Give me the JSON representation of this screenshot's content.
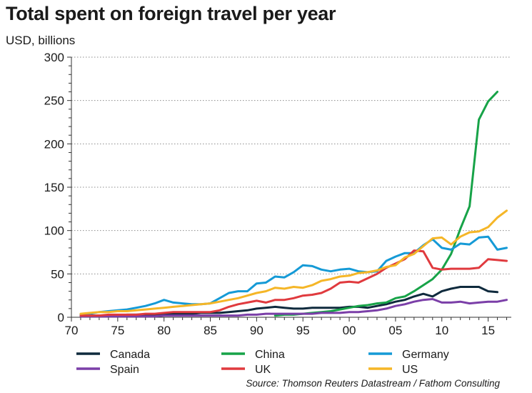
{
  "chart_data": {
    "type": "line",
    "title": "Total spent on foreign travel per year",
    "subtitle": "USD, billions",
    "source": "Source: Thomson Reuters Datastream / Fathom Consulting",
    "xlabel": "",
    "ylabel": "",
    "xlim": [
      1970,
      2017.5
    ],
    "ylim": [
      0,
      300
    ],
    "xticks": [
      1970,
      1975,
      1980,
      1985,
      1990,
      1995,
      2000,
      2005,
      2010,
      2015
    ],
    "xtick_labels": [
      "70",
      "75",
      "80",
      "85",
      "90",
      "95",
      "00",
      "05",
      "10",
      "15"
    ],
    "yticks": [
      0,
      50,
      100,
      150,
      200,
      250,
      300
    ],
    "ytick_labels": [
      "0",
      "50",
      "100",
      "150",
      "200",
      "250",
      "300"
    ],
    "grid": "horizontal dotted",
    "legend_position": "bottom",
    "x": [
      1971,
      1972,
      1973,
      1974,
      1975,
      1976,
      1977,
      1978,
      1979,
      1980,
      1981,
      1982,
      1983,
      1984,
      1985,
      1986,
      1987,
      1988,
      1989,
      1990,
      1991,
      1992,
      1993,
      1994,
      1995,
      1996,
      1997,
      1998,
      1999,
      2000,
      2001,
      2002,
      2003,
      2004,
      2005,
      2006,
      2007,
      2008,
      2009,
      2010,
      2011,
      2012,
      2013,
      2014,
      2015,
      2016,
      2017
    ],
    "series": [
      {
        "name": "Canada",
        "color": "#0f2a3d",
        "values": [
          2,
          2,
          2,
          2,
          2,
          3,
          3,
          3,
          3,
          4,
          4,
          4,
          4,
          5,
          5,
          5,
          6,
          7,
          8,
          10,
          11,
          12,
          11,
          10,
          10,
          11,
          11,
          11,
          11,
          12,
          12,
          11,
          13,
          15,
          18,
          20,
          24,
          27,
          24,
          30,
          33,
          35,
          35,
          35,
          30,
          29,
          null
        ]
      },
      {
        "name": "China",
        "color": "#17a348",
        "values": [
          null,
          null,
          null,
          null,
          null,
          null,
          null,
          null,
          null,
          null,
          null,
          null,
          null,
          null,
          null,
          null,
          null,
          null,
          null,
          null,
          null,
          2,
          3,
          3,
          4,
          5,
          6,
          7,
          9,
          11,
          13,
          14,
          16,
          17,
          22,
          24,
          30,
          37,
          44,
          55,
          73,
          102,
          128,
          228,
          249,
          260,
          null
        ]
      },
      {
        "name": "Germany",
        "color": "#159ad6",
        "values": [
          3,
          4,
          6,
          7,
          8,
          9,
          11,
          13,
          16,
          20,
          17,
          16,
          15,
          15,
          16,
          22,
          28,
          30,
          30,
          39,
          40,
          47,
          46,
          52,
          60,
          59,
          55,
          53,
          55,
          56,
          53,
          52,
          53,
          65,
          70,
          74,
          74,
          83,
          90,
          80,
          78,
          85,
          84,
          92,
          93,
          78,
          80
        ]
      },
      {
        "name": "Spain",
        "color": "#7b3fa8",
        "values": [
          1,
          1,
          1,
          1,
          1,
          1,
          1,
          1,
          1,
          2,
          2,
          2,
          2,
          2,
          2,
          2,
          2,
          2,
          3,
          3,
          4,
          4,
          4,
          4,
          4,
          4,
          5,
          5,
          5,
          6,
          6,
          7,
          8,
          10,
          13,
          15,
          18,
          20,
          21,
          17,
          17,
          18,
          16,
          17,
          18,
          18,
          20
        ]
      },
      {
        "name": "UK",
        "color": "#e03a3e",
        "values": [
          2,
          2,
          2,
          3,
          3,
          3,
          3,
          4,
          4,
          5,
          6,
          6,
          6,
          6,
          6,
          8,
          12,
          15,
          17,
          19,
          17,
          20,
          20,
          22,
          25,
          26,
          28,
          33,
          40,
          41,
          40,
          45,
          50,
          57,
          62,
          67,
          77,
          76,
          57,
          55,
          56,
          56,
          56,
          57,
          67,
          66,
          65
        ]
      },
      {
        "name": "US",
        "color": "#f5b627",
        "values": [
          4,
          5,
          6,
          6,
          7,
          7,
          8,
          9,
          10,
          11,
          12,
          13,
          14,
          15,
          16,
          18,
          20,
          22,
          25,
          28,
          30,
          34,
          33,
          35,
          34,
          37,
          42,
          44,
          47,
          48,
          51,
          52,
          54,
          58,
          60,
          69,
          73,
          82,
          91,
          92,
          84,
          93,
          98,
          99,
          104,
          115,
          123
        ]
      }
    ],
    "annotations": []
  }
}
